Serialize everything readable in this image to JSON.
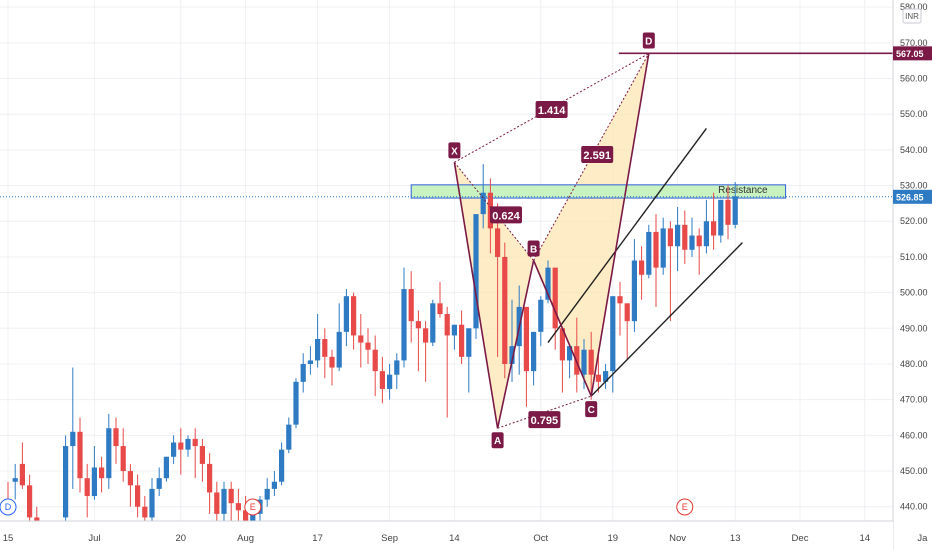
{
  "chart_data": {
    "type": "candlestick",
    "currency": "INR",
    "ylim": [
      436,
      582
    ],
    "y_ticks": [
      440,
      450,
      460,
      470,
      480,
      490,
      500,
      510,
      520,
      530,
      540,
      550,
      560,
      570,
      580
    ],
    "y_tick_labels": [
      "440.00",
      "450.00",
      "460.00",
      "470.00",
      "480.00",
      "490.00",
      "500.00",
      "510.00",
      "520.00",
      "530.00",
      "540.00",
      "550.00",
      "560.00",
      "570.00",
      "580.00"
    ],
    "x_labels": [
      {
        "label": "15",
        "bar": 0
      },
      {
        "label": "Jul",
        "bar": 12
      },
      {
        "label": "20",
        "bar": 24
      },
      {
        "label": "Aug",
        "bar": 33
      },
      {
        "label": "17",
        "bar": 43
      },
      {
        "label": "Sep",
        "bar": 53
      },
      {
        "label": "14",
        "bar": 62
      },
      {
        "label": "Oct",
        "bar": 74
      },
      {
        "label": "19",
        "bar": 84
      },
      {
        "label": "Nov",
        "bar": 93
      },
      {
        "label": "13",
        "bar": 101
      },
      {
        "label": "Dec",
        "bar": 110
      },
      {
        "label": "14",
        "bar": 119
      },
      {
        "label": "Ja",
        "bar": 127
      }
    ],
    "candles": [
      [
        441,
        447,
        439,
        438
      ],
      [
        447,
        452,
        448,
        442
      ],
      [
        452,
        458,
        446,
        445
      ],
      [
        446,
        449,
        437,
        436
      ],
      [
        437,
        440,
        435,
        434
      ],
      [
        435,
        436,
        430,
        429
      ],
      [
        430,
        431,
        428,
        427
      ],
      [
        428,
        430,
        423,
        422
      ],
      [
        437,
        460,
        457,
        436
      ],
      [
        457,
        479,
        461,
        445
      ],
      [
        461,
        465,
        448,
        444
      ],
      [
        448,
        452,
        443,
        437
      ],
      [
        443,
        457,
        451,
        442
      ],
      [
        451,
        454,
        448,
        444
      ],
      [
        448,
        466,
        462,
        445
      ],
      [
        462,
        465,
        457,
        452
      ],
      [
        457,
        462,
        450,
        447
      ],
      [
        450,
        452,
        446,
        440
      ],
      [
        446,
        449,
        440,
        437
      ],
      [
        440,
        443,
        437,
        436
      ],
      [
        437,
        448,
        445,
        433
      ],
      [
        445,
        451,
        448,
        443
      ],
      [
        448,
        452,
        454,
        447
      ],
      [
        454,
        460,
        458,
        452
      ],
      [
        458,
        462,
        456,
        449
      ],
      [
        456,
        460,
        459,
        454
      ],
      [
        459,
        462,
        457,
        448
      ],
      [
        457,
        459,
        452,
        447
      ],
      [
        452,
        455,
        444,
        438
      ],
      [
        444,
        447,
        438,
        436
      ],
      [
        438,
        447,
        445,
        434
      ],
      [
        445,
        447,
        441,
        436
      ],
      [
        441,
        445,
        439,
        434
      ],
      [
        439,
        443,
        436,
        433
      ],
      [
        436,
        441,
        438,
        433
      ],
      [
        438,
        443,
        442,
        436
      ],
      [
        442,
        448,
        445,
        440
      ],
      [
        445,
        450,
        447,
        443
      ],
      [
        447,
        458,
        456,
        446
      ],
      [
        456,
        465,
        463,
        455
      ],
      [
        463,
        476,
        475,
        462
      ],
      [
        475,
        483,
        480,
        472
      ],
      [
        480,
        485,
        481,
        477
      ],
      [
        481,
        494,
        487,
        479
      ],
      [
        487,
        490,
        482,
        476
      ],
      [
        482,
        484,
        479,
        474
      ],
      [
        479,
        497,
        489,
        478
      ],
      [
        489,
        501,
        499,
        485
      ],
      [
        499,
        500,
        488,
        484
      ],
      [
        488,
        494,
        486,
        479
      ],
      [
        486,
        490,
        484,
        480
      ],
      [
        484,
        488,
        478,
        471
      ],
      [
        478,
        482,
        473,
        469
      ],
      [
        473,
        480,
        477,
        470
      ],
      [
        477,
        483,
        481,
        473
      ],
      [
        481,
        507,
        501,
        479
      ],
      [
        501,
        506,
        492,
        486
      ],
      [
        492,
        495,
        490,
        478
      ],
      [
        490,
        492,
        486,
        475
      ],
      [
        486,
        498,
        497,
        485
      ],
      [
        497,
        503,
        494,
        493
      ],
      [
        494,
        496,
        488,
        465
      ],
      [
        488,
        490,
        491,
        484
      ],
      [
        491,
        495,
        482,
        480
      ],
      [
        482,
        489,
        490,
        472
      ],
      [
        490,
        520,
        522,
        487
      ],
      [
        522,
        536,
        528,
        518
      ],
      [
        528,
        532,
        518,
        511
      ],
      [
        518,
        525,
        510,
        482
      ],
      [
        510,
        514,
        480,
        476
      ],
      [
        480,
        498,
        485,
        475
      ],
      [
        485,
        502,
        496,
        477
      ],
      [
        496,
        492,
        478,
        468
      ],
      [
        478,
        486,
        489,
        474
      ],
      [
        489,
        499,
        498,
        485
      ],
      [
        498,
        509,
        507,
        497
      ],
      [
        507,
        498,
        490,
        484
      ],
      [
        490,
        489,
        481,
        472
      ],
      [
        481,
        484,
        485,
        476
      ],
      [
        485,
        493,
        477,
        472
      ],
      [
        477,
        487,
        484,
        473
      ],
      [
        484,
        489,
        477,
        470
      ],
      [
        477,
        484,
        475,
        472
      ],
      [
        475,
        480,
        478,
        473
      ],
      [
        478,
        496,
        499,
        472
      ],
      [
        499,
        503,
        497,
        488
      ],
      [
        497,
        494,
        492,
        481
      ],
      [
        492,
        515,
        509,
        489
      ],
      [
        509,
        513,
        505,
        498
      ],
      [
        505,
        519,
        517,
        504
      ],
      [
        517,
        522,
        507,
        496
      ],
      [
        507,
        521,
        518,
        505
      ],
      [
        518,
        520,
        513,
        492
      ],
      [
        513,
        524,
        519,
        506
      ],
      [
        519,
        523,
        512,
        508
      ],
      [
        512,
        521,
        516,
        510
      ],
      [
        516,
        518,
        513,
        505
      ],
      [
        513,
        526,
        520,
        511
      ],
      [
        520,
        528,
        516,
        512
      ],
      [
        516,
        523,
        526,
        514
      ],
      [
        526,
        530,
        519,
        515
      ],
      [
        519,
        531,
        527,
        518
      ]
    ],
    "pattern_points": [
      {
        "label": "X",
        "bar": 62,
        "price": 536.5
      },
      {
        "label": "A",
        "bar": 68,
        "price": 462
      },
      {
        "label": "B",
        "bar": 73,
        "price": 509
      },
      {
        "label": "C",
        "bar": 81,
        "price": 471
      },
      {
        "label": "D",
        "bar": 89,
        "price": 567
      }
    ],
    "ratios": [
      {
        "label": "0.624",
        "between": "XA-B"
      },
      {
        "label": "0.795",
        "between": "AB-C"
      },
      {
        "label": "1.414",
        "between": "XA-D"
      },
      {
        "label": "2.591",
        "between": "BC-D"
      }
    ],
    "resistance_zone": {
      "label": "Resistance",
      "from": 526.5,
      "to": 530.2,
      "bar_start": 56,
      "bar_end": 108
    },
    "horizontal_level": {
      "price": 567.05,
      "label": "567.05"
    },
    "current_price": {
      "price": 526.85,
      "label": "526.85"
    },
    "events": [
      {
        "label": "D",
        "bar": 0,
        "color": "#2962ff"
      },
      {
        "label": "E",
        "bar": 34,
        "color": "#e53935"
      },
      {
        "label": "E",
        "bar": 94,
        "color": "#e53935"
      }
    ],
    "colors": {
      "up": "#2e7bc4",
      "down": "#e84a4a",
      "pattern": "#7b1a46",
      "fill": "#fde5b3",
      "zone": "#c8f2c0",
      "zone_border": "#2b5fd7",
      "channel": "#222222"
    }
  }
}
